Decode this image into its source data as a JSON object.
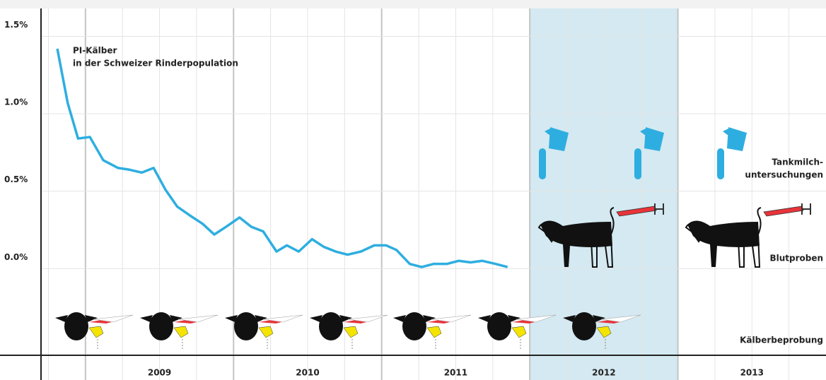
{
  "chart_data": {
    "type": "line",
    "x": [
      2008.81,
      2008.88,
      2008.95,
      2009.03,
      2009.12,
      2009.22,
      2009.29,
      2009.38,
      2009.46,
      2009.54,
      2009.62,
      2009.71,
      2009.79,
      2009.87,
      2009.95,
      2010.04,
      2010.12,
      2010.2,
      2010.29,
      2010.36,
      2010.44,
      2010.53,
      2010.61,
      2010.69,
      2010.77,
      2010.86,
      2010.95,
      2011.03,
      2011.1,
      2011.19,
      2011.27,
      2011.35,
      2011.44,
      2011.52,
      2011.6,
      2011.68,
      2011.77,
      2011.85
    ],
    "values": [
      1.42,
      1.07,
      0.84,
      0.85,
      0.7,
      0.65,
      0.64,
      0.62,
      0.65,
      0.51,
      0.4,
      0.34,
      0.29,
      0.22,
      0.27,
      0.33,
      0.27,
      0.24,
      0.11,
      0.15,
      0.11,
      0.19,
      0.14,
      0.11,
      0.09,
      0.11,
      0.15,
      0.15,
      0.12,
      0.03,
      0.01,
      0.03,
      0.03,
      0.05,
      0.04,
      0.05,
      0.03,
      0.01
    ],
    "color": "#2eaee0",
    "categories": [
      "2009",
      "2010",
      "2011",
      "2012",
      "2013"
    ],
    "shaded_category": "2012",
    "xlim": [
      2008.7,
      2014
    ],
    "ylim": [
      -0.56,
      1.68
    ],
    "yticks": [
      {
        "value": 0.0,
        "label": "0.0%"
      },
      {
        "value": 0.5,
        "label": "0.5%"
      },
      {
        "value": 1.0,
        "label": "1.0%"
      },
      {
        "value": 1.5,
        "label": "1.5%"
      }
    ],
    "grid": true,
    "annotations": {
      "line_label": [
        "PI-Kälber",
        "in der Schweizer Rinderpopulation"
      ],
      "milk": [
        "Tankmilch-",
        "untersuchungen"
      ],
      "blood": "Blutproben",
      "calves": "Kälberbeprobung"
    }
  }
}
